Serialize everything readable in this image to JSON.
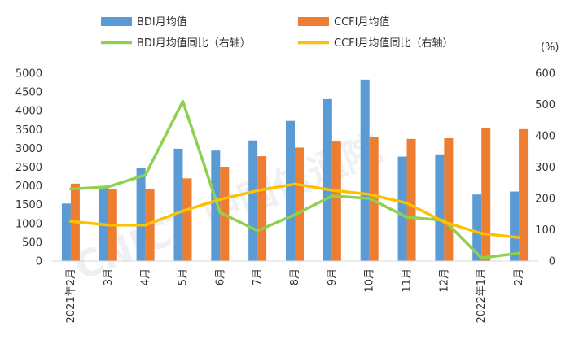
{
  "chart_data": {
    "type": "bar",
    "categories": [
      "2021年2月",
      "3月",
      "4月",
      "5月",
      "6月",
      "7月",
      "8月",
      "9月",
      "10月",
      "11月",
      "12月",
      "2022年1月",
      "2月"
    ],
    "series": [
      {
        "name": "BDI月均值",
        "kind": "bar",
        "axis": "left",
        "color": "#5b9bd5",
        "values": [
          1530,
          1940,
          2480,
          2990,
          2940,
          3210,
          3730,
          4310,
          4830,
          2780,
          2840,
          1770,
          1850
        ]
      },
      {
        "name": "CCFI月均值",
        "kind": "bar",
        "axis": "left",
        "color": "#ed7d31",
        "values": [
          2060,
          1910,
          1920,
          2200,
          2510,
          2790,
          3020,
          3180,
          3290,
          3250,
          3270,
          3550,
          3510
        ]
      },
      {
        "name": "BDI月均值同比（右轴）",
        "kind": "line",
        "axis": "right",
        "color": "#8fd14f",
        "values": [
          230,
          237,
          275,
          510,
          155,
          97,
          148,
          208,
          200,
          140,
          130,
          10,
          25
        ]
      },
      {
        "name": "CCFI月均值同比（右轴）",
        "kind": "line",
        "axis": "right",
        "color": "#ffc000",
        "values": [
          127,
          115,
          115,
          160,
          197,
          225,
          246,
          226,
          213,
          185,
          125,
          88,
          75
        ]
      }
    ],
    "y_left": {
      "min": 0,
      "max": 5000,
      "step": 500,
      "ticks": [
        "0",
        "500",
        "1000",
        "1500",
        "2000",
        "2500",
        "3000",
        "3500",
        "4000",
        "4500",
        "5000"
      ]
    },
    "y_right": {
      "min": 0,
      "max": 600,
      "step": 100,
      "ticks": [
        "0",
        "100",
        "200",
        "300",
        "400",
        "500",
        "600"
      ],
      "unit": "(%)"
    },
    "legend_position": "top",
    "grid": false
  },
  "watermark": "CNICT 中国信通院"
}
